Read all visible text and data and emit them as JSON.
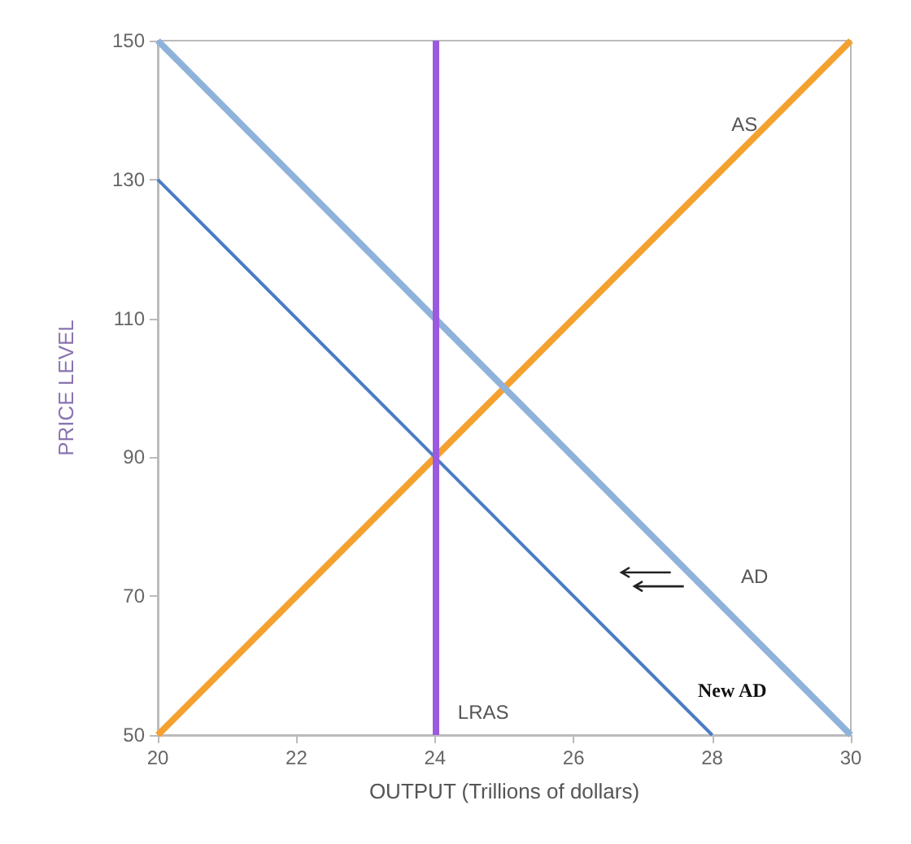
{
  "chart_data": {
    "type": "line",
    "xlabel": "OUTPUT (Trillions of dollars)",
    "ylabel": "PRICE LEVEL",
    "xlim": [
      20,
      30
    ],
    "xticks": [
      20,
      22,
      24,
      26,
      28,
      30
    ],
    "ylim": [
      50,
      150
    ],
    "yticks": [
      50,
      70,
      90,
      110,
      130,
      150
    ],
    "grid": false,
    "marker": "none",
    "line_style": "solid",
    "series": [
      {
        "name": "AS",
        "color": "#f4a12f",
        "x": [
          20,
          30
        ],
        "values": [
          50,
          150
        ]
      },
      {
        "name": "AD",
        "color": "#8fb2da",
        "x": [
          20,
          30
        ],
        "values": [
          150,
          50
        ]
      },
      {
        "name": "New AD",
        "color": "#4a7cc4",
        "x": [
          20,
          28
        ],
        "values": [
          130,
          50
        ]
      }
    ],
    "ref_lines": [
      {
        "axis": "x",
        "value": 24,
        "label": "LRAS",
        "color": "#9b59e0"
      }
    ]
  }
}
